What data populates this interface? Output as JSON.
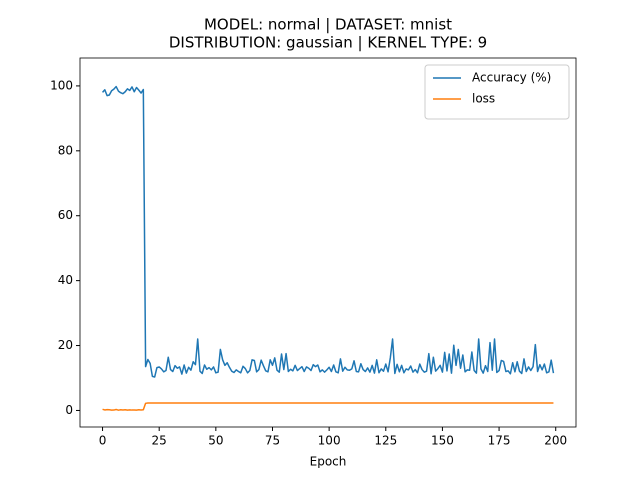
{
  "chart_data": {
    "type": "line",
    "title": "MODEL: normal | DATASET: mnist",
    "subtitle": "DISTRIBUTION: gaussian | KERNEL TYPE: 9",
    "xlabel": "Epoch",
    "x": [
      0,
      1,
      2,
      3,
      4,
      5,
      6,
      7,
      8,
      9,
      10,
      11,
      12,
      13,
      14,
      15,
      16,
      17,
      18,
      19,
      20,
      21,
      22,
      23,
      24,
      25,
      26,
      27,
      28,
      29,
      30,
      31,
      32,
      33,
      34,
      35,
      36,
      37,
      38,
      39,
      40,
      41,
      42,
      43,
      44,
      45,
      46,
      47,
      48,
      49,
      50,
      51,
      52,
      53,
      54,
      55,
      56,
      57,
      58,
      59,
      60,
      61,
      62,
      63,
      64,
      65,
      66,
      67,
      68,
      69,
      70,
      71,
      72,
      73,
      74,
      75,
      76,
      77,
      78,
      79,
      80,
      81,
      82,
      83,
      84,
      85,
      86,
      87,
      88,
      89,
      90,
      91,
      92,
      93,
      94,
      95,
      96,
      97,
      98,
      99,
      100,
      101,
      102,
      103,
      104,
      105,
      106,
      107,
      108,
      109,
      110,
      111,
      112,
      113,
      114,
      115,
      116,
      117,
      118,
      119,
      120,
      121,
      122,
      123,
      124,
      125,
      126,
      127,
      128,
      129,
      130,
      131,
      132,
      133,
      134,
      135,
      136,
      137,
      138,
      139,
      140,
      141,
      142,
      143,
      144,
      145,
      146,
      147,
      148,
      149,
      150,
      151,
      152,
      153,
      154,
      155,
      156,
      157,
      158,
      159,
      160,
      161,
      162,
      163,
      164,
      165,
      166,
      167,
      168,
      169,
      170,
      171,
      172,
      173,
      174,
      175,
      176,
      177,
      178,
      179,
      180,
      181,
      182,
      183,
      184,
      185,
      186,
      187,
      188,
      189,
      190,
      191,
      192,
      193,
      194,
      195,
      196,
      197,
      198,
      199
    ],
    "series": [
      {
        "name": "Accuracy (%)",
        "color": "#1f77b4",
        "values": [
          98,
          98.8,
          97,
          97.2,
          98.5,
          99,
          99.8,
          98.4,
          97.9,
          97.6,
          98.2,
          99.1,
          98.6,
          99.7,
          98.2,
          99.5,
          98.7,
          97.8,
          98.9,
          13.5,
          15.7,
          14.5,
          10.5,
          10.3,
          13.2,
          13.4,
          12.8,
          11.9,
          12.3,
          16.4,
          12.6,
          12.0,
          13.8,
          13.0,
          13.4,
          11.2,
          14.0,
          11.5,
          13.3,
          12.4,
          15.0,
          14.1,
          22.0,
          12.1,
          11.4,
          14.0,
          12.7,
          13.2,
          12.5,
          13.4,
          11.6,
          11.8,
          18.8,
          15.6,
          13.9,
          14.7,
          13.3,
          12.1,
          11.7,
          12.5,
          12.0,
          11.6,
          13.6,
          12.9,
          11.6,
          12.3,
          15.6,
          15.4,
          11.9,
          12.6,
          15.5,
          13.8,
          12.2,
          11.9,
          15.6,
          13.9,
          16.2,
          12.4,
          11.8,
          17.4,
          12.6,
          17.5,
          12.0,
          12.7,
          12.2,
          13.9,
          12.3,
          12.9,
          13.5,
          12.0,
          13.4,
          13.0,
          12.3,
          14.1,
          13.5,
          14.0,
          11.9,
          12.5,
          11.8,
          12.5,
          13.3,
          12.0,
          14.0,
          11.9,
          11.6,
          15.9,
          12.1,
          13.3,
          12.5,
          12.4,
          12.8,
          15.3,
          12.0,
          11.9,
          14.4,
          12.6,
          12.0,
          13.1,
          11.8,
          13.9,
          11.5,
          15.6,
          11.6,
          12.8,
          12.1,
          14.3,
          11.9,
          16.2,
          22.0,
          11.4,
          14.2,
          11.9,
          13.9,
          11.6,
          12.8,
          12.5,
          13.7,
          11.8,
          12.6,
          11.6,
          14.3,
          12.6,
          11.8,
          12.1,
          17.5,
          11.3,
          16.4,
          12.1,
          12.9,
          13.9,
          11.8,
          17.9,
          12.2,
          17.4,
          11.5,
          20.1,
          13.9,
          18.8,
          13.0,
          17.1,
          11.9,
          12.5,
          12.4,
          18.0,
          12.3,
          11.5,
          22.0,
          12.8,
          11.5,
          13.8,
          12.0,
          20.9,
          12.4,
          22.0,
          11.7,
          12.3,
          15.4,
          15.1,
          12.0,
          12.2,
          11.3,
          14.7,
          11.9,
          15.0,
          12.1,
          11.4,
          15.9,
          12.0,
          13.4,
          12.3,
          13.5,
          20.3,
          12.0,
          14.1,
          12.5,
          14.3,
          11.6,
          11.9,
          15.5,
          11.5
        ]
      },
      {
        "name": "loss",
        "color": "#ff7f0e",
        "values": [
          0.35,
          0.15,
          0.25,
          0.2,
          0.1,
          0.12,
          0.3,
          0.08,
          0.2,
          0.15,
          0.22,
          0.1,
          0.18,
          0.12,
          0.15,
          0.1,
          0.2,
          0.14,
          0.2,
          2.2,
          2.3,
          2.3,
          2.3,
          2.3,
          2.3,
          2.3,
          2.3,
          2.3,
          2.3,
          2.3,
          2.3,
          2.3,
          2.3,
          2.3,
          2.3,
          2.3,
          2.3,
          2.3,
          2.3,
          2.3,
          2.3,
          2.3,
          2.3,
          2.3,
          2.3,
          2.3,
          2.3,
          2.3,
          2.3,
          2.3,
          2.3,
          2.3,
          2.3,
          2.3,
          2.3,
          2.3,
          2.3,
          2.3,
          2.3,
          2.3,
          2.3,
          2.3,
          2.3,
          2.3,
          2.3,
          2.3,
          2.3,
          2.3,
          2.3,
          2.3,
          2.3,
          2.3,
          2.3,
          2.3,
          2.3,
          2.3,
          2.3,
          2.3,
          2.3,
          2.3,
          2.3,
          2.3,
          2.3,
          2.3,
          2.3,
          2.3,
          2.3,
          2.3,
          2.3,
          2.3,
          2.3,
          2.3,
          2.3,
          2.3,
          2.3,
          2.3,
          2.3,
          2.3,
          2.3,
          2.3,
          2.3,
          2.3,
          2.3,
          2.3,
          2.3,
          2.3,
          2.3,
          2.3,
          2.3,
          2.3,
          2.3,
          2.3,
          2.3,
          2.3,
          2.3,
          2.3,
          2.3,
          2.3,
          2.3,
          2.3,
          2.3,
          2.3,
          2.3,
          2.3,
          2.3,
          2.3,
          2.3,
          2.3,
          2.3,
          2.3,
          2.3,
          2.3,
          2.3,
          2.3,
          2.3,
          2.3,
          2.3,
          2.3,
          2.3,
          2.3,
          2.3,
          2.3,
          2.3,
          2.3,
          2.3,
          2.3,
          2.3,
          2.3,
          2.3,
          2.3,
          2.3,
          2.3,
          2.3,
          2.3,
          2.3,
          2.3,
          2.3,
          2.3,
          2.3,
          2.3,
          2.3,
          2.3,
          2.3,
          2.3,
          2.3,
          2.3,
          2.3,
          2.3,
          2.3,
          2.3,
          2.3,
          2.3,
          2.3,
          2.3,
          2.3,
          2.3,
          2.3,
          2.3,
          2.3,
          2.3,
          2.3,
          2.3,
          2.3,
          2.3,
          2.3,
          2.3,
          2.3,
          2.3,
          2.3,
          2.3,
          2.3,
          2.3,
          2.3,
          2.3,
          2.3,
          2.3,
          2.3,
          2.3,
          2.3,
          2.3
        ]
      }
    ],
    "xlim": [
      -9.95,
      208.95
    ],
    "xticks": [
      0,
      25,
      50,
      75,
      100,
      125,
      150,
      175,
      200
    ],
    "ylim": [
      -5.1,
      108.6
    ],
    "yticks": [
      0,
      20,
      40,
      60,
      80,
      100
    ],
    "legend": "upper right"
  }
}
